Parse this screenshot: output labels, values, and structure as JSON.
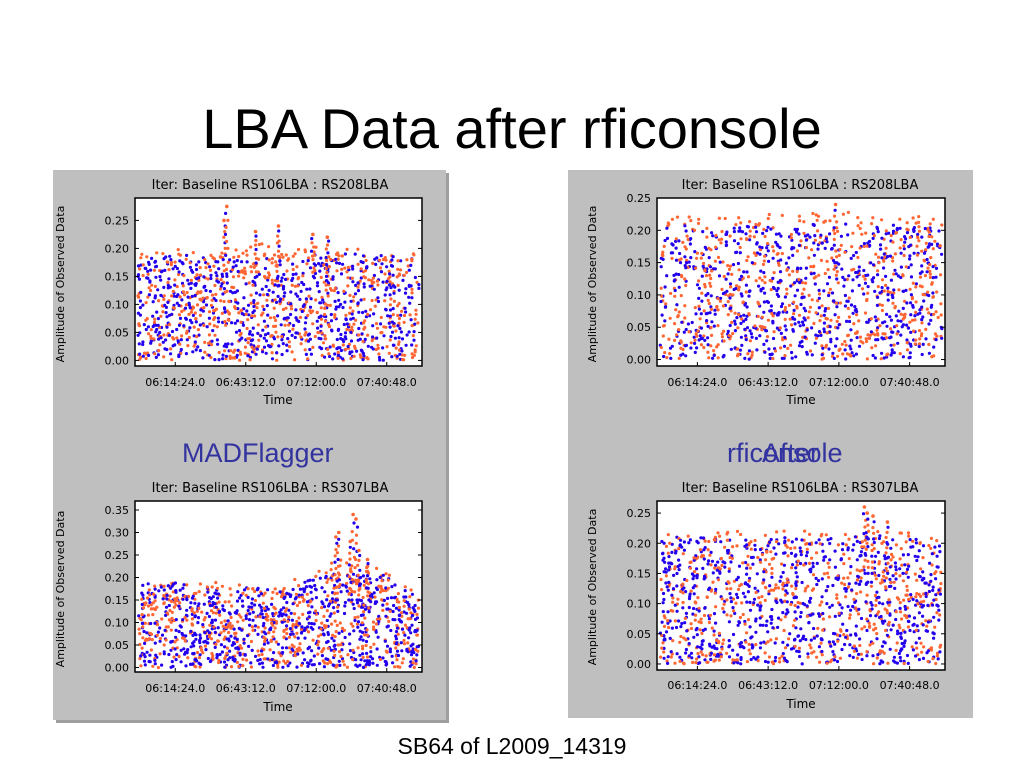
{
  "slide": {
    "title": "LBA Data after rficonsole",
    "footer": "SB64 of L2009_14319",
    "captions": {
      "left": "MADFlagger",
      "right_back": "rficonsole",
      "right_front": "After"
    }
  },
  "colors": {
    "flagged": "#ff6633",
    "unflagged": "#2200ee",
    "panel_bg": "#bfbfbf",
    "caption": "#3333a0"
  },
  "chart_data": [
    {
      "type": "scatter",
      "title": "Iter: Baseline RS106LBA : RS208LBA",
      "xlabel": "Time",
      "ylabel": "Amplitude of Observed Data",
      "x_tick_labels": [
        "06:14:24.0",
        "06:43:12.0",
        "07:12:00.0",
        "07:40:48.0"
      ],
      "ylim": [
        -0.01,
        0.29
      ],
      "y_ticks": [
        0.0,
        0.05,
        0.1,
        0.15,
        0.2,
        0.25
      ],
      "y_tick_labels": [
        "0.00",
        "0.05",
        "0.10",
        "0.15",
        "0.20",
        "0.25"
      ],
      "series": [
        {
          "color": "#2200ee",
          "envelope": [
            0.19,
            0.19,
            0.18,
            0.18,
            0.19,
            0.19,
            0.19,
            0.18
          ]
        },
        {
          "color": "#ff6633",
          "envelope": [
            0.19,
            0.2,
            0.19,
            0.21,
            0.21,
            0.2,
            0.2,
            0.19
          ]
        }
      ],
      "spikes": [
        [
          0.31,
          0.25
        ],
        [
          0.32,
          0.275
        ],
        [
          0.42,
          0.23
        ],
        [
          0.5,
          0.24
        ],
        [
          0.62,
          0.225
        ],
        [
          0.67,
          0.22
        ]
      ]
    },
    {
      "type": "scatter",
      "title": "Iter: Baseline RS106LBA : RS208LBA",
      "xlabel": "Time",
      "ylabel": "Amplitude of Observed Data",
      "x_tick_labels": [
        "06:14:24.0",
        "06:43:12.0",
        "07:12:00.0",
        "07:40:48.0"
      ],
      "ylim": [
        -0.01,
        0.25
      ],
      "y_ticks": [
        0.0,
        0.05,
        0.1,
        0.15,
        0.2,
        0.25
      ],
      "y_tick_labels": [
        "0.00",
        "0.05",
        "0.10",
        "0.15",
        "0.20",
        "0.25"
      ],
      "series": [
        {
          "color": "#2200ee",
          "envelope": [
            0.21,
            0.21,
            0.21,
            0.21,
            0.21,
            0.21,
            0.21,
            0.21
          ]
        },
        {
          "color": "#ff6633",
          "envelope": [
            0.22,
            0.225,
            0.22,
            0.23,
            0.225,
            0.23,
            0.225,
            0.22
          ]
        }
      ],
      "spikes": [
        [
          0.62,
          0.24
        ]
      ]
    },
    {
      "type": "scatter",
      "title": "Iter: Baseline RS106LBA : RS307LBA",
      "xlabel": "Time",
      "ylabel": "Amplitude of Observed Data",
      "x_tick_labels": [
        "06:14:24.0",
        "06:43:12.0",
        "07:12:00.0",
        "07:40:48.0"
      ],
      "ylim": [
        -0.01,
        0.37
      ],
      "y_ticks": [
        0.0,
        0.05,
        0.1,
        0.15,
        0.2,
        0.25,
        0.3,
        0.35
      ],
      "y_tick_labels": [
        "0.00",
        "0.05",
        "0.10",
        "0.15",
        "0.20",
        "0.25",
        "0.30",
        "0.35"
      ],
      "series": [
        {
          "color": "#2200ee",
          "envelope": [
            0.19,
            0.19,
            0.18,
            0.18,
            0.19,
            0.21,
            0.21,
            0.17
          ]
        },
        {
          "color": "#ff6633",
          "envelope": [
            0.185,
            0.19,
            0.19,
            0.18,
            0.2,
            0.24,
            0.22,
            0.17
          ]
        }
      ],
      "spikes": [
        [
          0.7,
          0.29
        ],
        [
          0.71,
          0.3
        ],
        [
          0.76,
          0.34
        ],
        [
          0.77,
          0.33
        ],
        [
          0.78,
          0.26
        ],
        [
          0.81,
          0.24
        ],
        [
          0.75,
          0.28
        ]
      ]
    },
    {
      "type": "scatter",
      "title": "Iter: Baseline RS106LBA : RS307LBA",
      "xlabel": "Time",
      "ylabel": "Amplitude of Observed Data",
      "x_tick_labels": [
        "06:14:24.0",
        "06:43:12.0",
        "07:12:00.0",
        "07:40:48.0"
      ],
      "ylim": [
        -0.01,
        0.27
      ],
      "y_ticks": [
        0.0,
        0.05,
        0.1,
        0.15,
        0.2,
        0.25
      ],
      "y_tick_labels": [
        "0.00",
        "0.05",
        "0.10",
        "0.15",
        "0.20",
        "0.25"
      ],
      "series": [
        {
          "color": "#2200ee",
          "envelope": [
            0.21,
            0.21,
            0.21,
            0.21,
            0.21,
            0.22,
            0.21,
            0.2
          ]
        },
        {
          "color": "#ff6633",
          "envelope": [
            0.215,
            0.22,
            0.22,
            0.22,
            0.225,
            0.23,
            0.22,
            0.21
          ]
        }
      ],
      "spikes": [
        [
          0.72,
          0.26
        ],
        [
          0.73,
          0.25
        ],
        [
          0.75,
          0.245
        ],
        [
          0.8,
          0.235
        ]
      ]
    }
  ]
}
